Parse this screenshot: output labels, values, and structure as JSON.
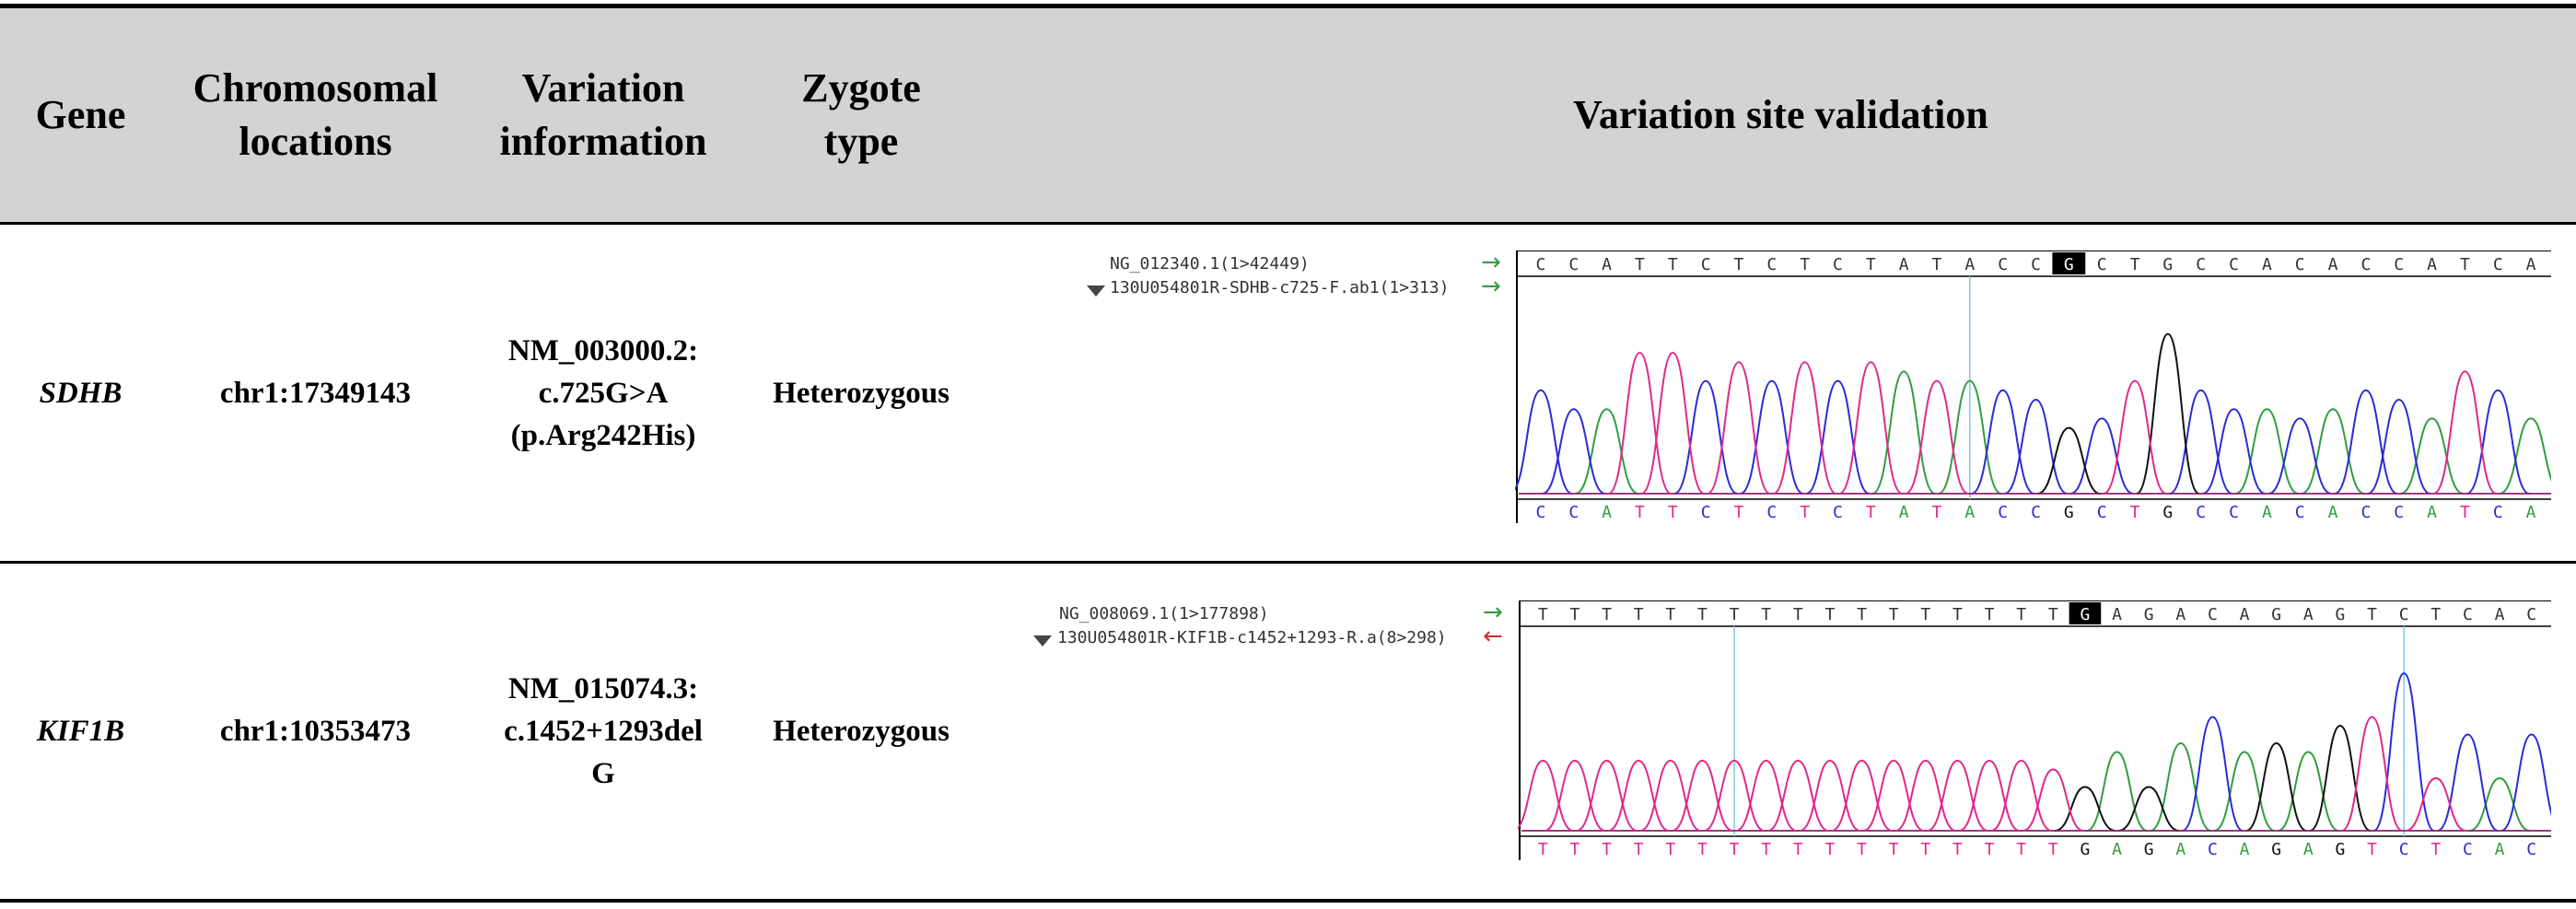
{
  "table": {
    "headers": {
      "gene": "Gene",
      "chromosomal_locations": [
        "Chromosomal",
        "locations"
      ],
      "variation_information": [
        "Variation",
        "information"
      ],
      "zygote_type": [
        "Zygote",
        "type"
      ],
      "validation": "Variation site validation"
    },
    "rows": [
      {
        "gene": "SDHB",
        "location": "chr1:17349143",
        "variation": [
          "NM_003000.2:",
          "c.725G>A",
          "(p.Arg242His)"
        ],
        "zygote": "Heterozygous",
        "chromatogram": {
          "ref_label": "NG_012340.1(1>42449)",
          "read_label": "130U054801R-SDHB-c725-F.ab1(1>313)",
          "ref_arrow": "→",
          "read_arrow": "→",
          "ref_arrow_color": "#2e9e3e",
          "read_arrow_color": "#2e9e3e",
          "ref_sequence": [
            "C",
            "C",
            "A",
            "T",
            "T",
            "C",
            "T",
            "C",
            "T",
            "C",
            "T",
            "A",
            "T",
            "A",
            "C",
            "C",
            "G",
            "C",
            "T",
            "G",
            "C",
            "C",
            "A",
            "C",
            "A",
            "C",
            "C",
            "A",
            "T",
            "C",
            "A"
          ],
          "read_sequence": [
            "C",
            "C",
            "A",
            "T",
            "T",
            "C",
            "T",
            "C",
            "T",
            "C",
            "T",
            "A",
            "T",
            "A",
            "C",
            "C",
            "G",
            "C",
            "T",
            "G",
            "C",
            "C",
            "A",
            "C",
            "A",
            "C",
            "C",
            "A",
            "T",
            "C",
            "A"
          ],
          "highlight_index": 16
        }
      },
      {
        "gene": "KIF1B",
        "location": "chr1:10353473",
        "variation": [
          "NM_015074.3:",
          "c.1452+1293del",
          "G"
        ],
        "zygote": "Heterozygous",
        "chromatogram": {
          "ref_label": "NG_008069.1(1>177898)",
          "read_label": "130U054801R-KIF1B-c1452+1293-R.a(8>298)",
          "ref_arrow": "→",
          "read_arrow": "←",
          "ref_arrow_color": "#2e9e3e",
          "read_arrow_color": "#cc3333",
          "ref_sequence": [
            "T",
            "T",
            "T",
            "T",
            "T",
            "T",
            "T",
            "T",
            "T",
            "T",
            "T",
            "T",
            "T",
            "T",
            "T",
            "T",
            "T",
            "G",
            "A",
            "G",
            "A",
            "C",
            "A",
            "G",
            "A",
            "G",
            "T",
            "C",
            "T",
            "C",
            "A",
            "C"
          ],
          "read_sequence": [
            "T",
            "T",
            "T",
            "T",
            "T",
            "T",
            "T",
            "T",
            "T",
            "T",
            "T",
            "T",
            "T",
            "T",
            "T",
            "T",
            "T",
            "G",
            "A",
            "G",
            "A",
            "C",
            "A",
            "G",
            "A",
            "G",
            "T",
            "C",
            "T",
            "C",
            "A",
            "C"
          ],
          "highlight_index": 17
        }
      }
    ]
  },
  "colors": {
    "header_bg": "#d3d3d3",
    "A": "#2e9e3e",
    "C": "#2b2bd6",
    "G": "#111111",
    "T": "#e0288c",
    "cursor": "#7fc6ee"
  }
}
